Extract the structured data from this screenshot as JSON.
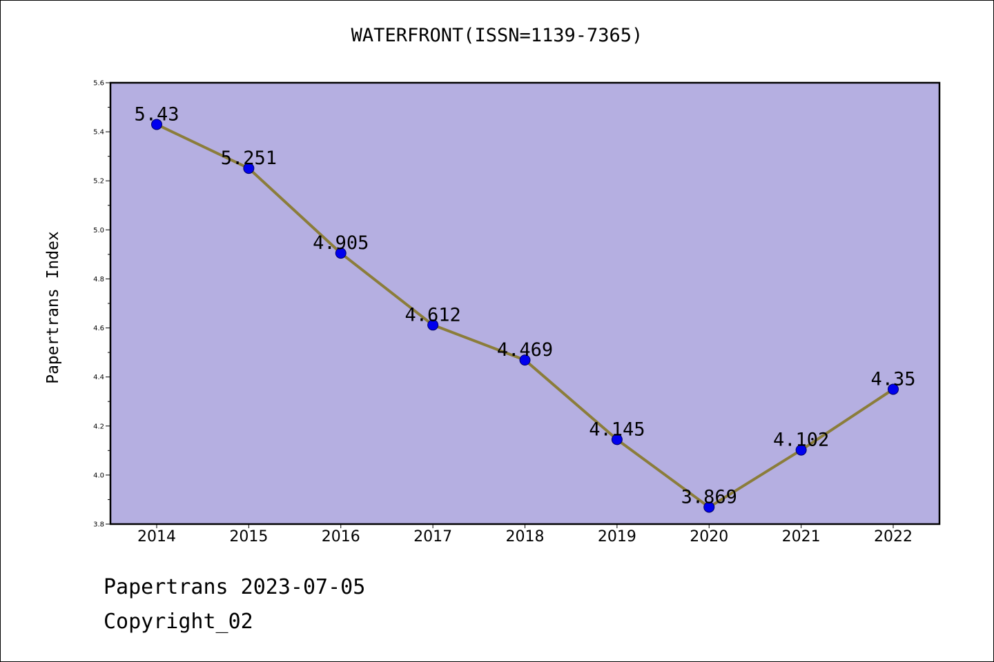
{
  "chart_data": {
    "type": "line",
    "title": "WATERFRONT(ISSN=1139-7365)",
    "xlabel": "",
    "ylabel": "Papertrans Index",
    "categories": [
      "2014",
      "2015",
      "2016",
      "2017",
      "2018",
      "2019",
      "2020",
      "2021",
      "2022"
    ],
    "series": [
      {
        "values": [
          5.43,
          5.251,
          4.905,
          4.612,
          4.469,
          4.145,
          3.869,
          4.102,
          4.35
        ],
        "labels": [
          "5.43",
          "5.251",
          "4.905",
          "4.612",
          "4.469",
          "4.145",
          "3.869",
          "4.102",
          "4.35"
        ]
      }
    ],
    "ylim": [
      3.8,
      5.6
    ],
    "yticks": [
      "3.8",
      "4.0",
      "4.2",
      "4.4",
      "4.6",
      "4.8",
      "5.0",
      "5.2",
      "5.4",
      "5.6"
    ],
    "grid": false,
    "colors": {
      "plot_background": "#b5afe1",
      "line": "#8b7d3a",
      "marker": "#0000ee",
      "axis": "#000000"
    }
  },
  "footer": {
    "date_line": "Papertrans 2023-07-05",
    "copyright_line": "Copyright_02"
  }
}
